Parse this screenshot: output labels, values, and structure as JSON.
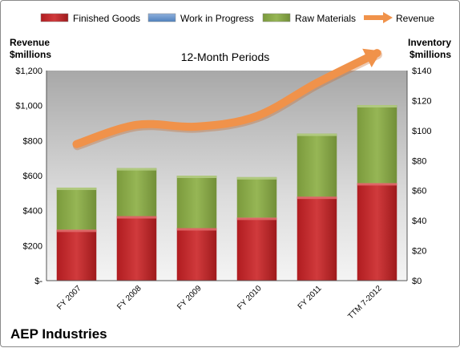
{
  "chart_data": {
    "type": "bar",
    "subtitle": "12-Month Periods",
    "company": "AEP Industries",
    "left_axis_label": [
      "Revenue",
      "$millions"
    ],
    "right_axis_label": [
      "Inventory",
      "$millions"
    ],
    "categories": [
      "FY 2007",
      "FY 2008",
      "FY 2009",
      "FY 2010",
      "FY 2011",
      "TTM 7-2012"
    ],
    "left_ticks": [
      "$-",
      "$200",
      "$400",
      "$600",
      "$800",
      "$1,000",
      "$1,200"
    ],
    "right_ticks": [
      "$0",
      "$20",
      "$40",
      "$60",
      "$80",
      "$100",
      "$120",
      "$140"
    ],
    "left_ylim": [
      0,
      1200
    ],
    "right_ylim": [
      0,
      140
    ],
    "stacked": true,
    "grid": false,
    "legend_position": "top",
    "series": [
      {
        "name": "Finished Goods",
        "axis": "right",
        "kind": "bar",
        "color": "#c0282c",
        "values": [
          34,
          43,
          35,
          42,
          56,
          65
        ]
      },
      {
        "name": "Work in Progress",
        "axis": "right",
        "kind": "bar",
        "color": "#4f81bd",
        "values": [
          0,
          0,
          0,
          0,
          0,
          0
        ]
      },
      {
        "name": "Raw Materials",
        "axis": "right",
        "kind": "bar",
        "color": "#8aaa48",
        "values": [
          28,
          32,
          35,
          27,
          42,
          52
        ]
      },
      {
        "name": "Revenue",
        "axis": "left",
        "kind": "line",
        "color": "#f0924a",
        "values": [
          780,
          890,
          880,
          940,
          1130,
          1300
        ]
      }
    ]
  }
}
